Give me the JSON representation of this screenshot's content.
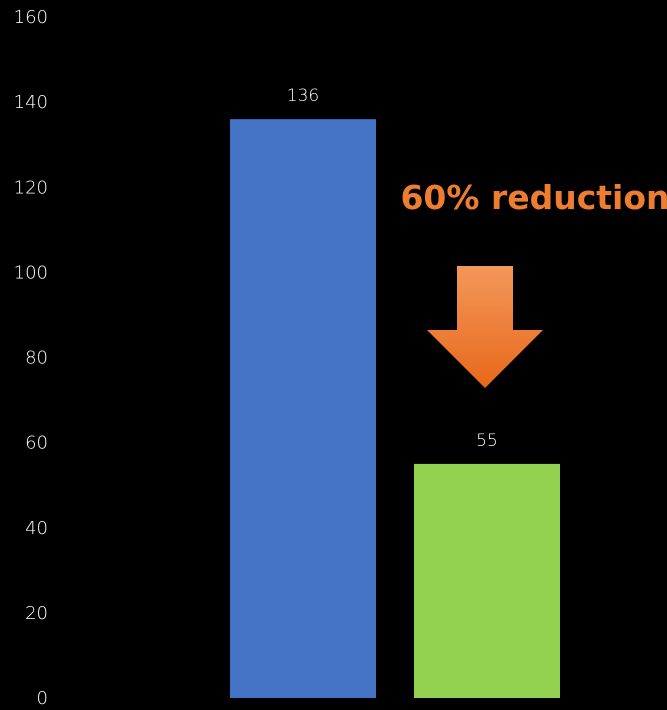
{
  "chart_data": {
    "type": "bar",
    "title": "",
    "xlabel": "",
    "ylabel": "",
    "ylim": [
      0,
      160
    ],
    "y_ticks": [
      0,
      20,
      40,
      60,
      80,
      100,
      120,
      140,
      160
    ],
    "grid": false,
    "legend": "none",
    "categories": [
      "",
      ""
    ],
    "values": [
      136,
      55
    ],
    "data_labels": [
      "136",
      "55"
    ],
    "bar_colors": [
      "#4472c4",
      "#92d050"
    ],
    "annotation": {
      "text": "60% reduction",
      "color": "#ed7d31",
      "arrow": "down-arrow-icon",
      "arrow_gradient": [
        "#f3975a",
        "#e8681b"
      ]
    }
  },
  "colors": {
    "background": "#000000",
    "axis_text": "#ffffff"
  }
}
